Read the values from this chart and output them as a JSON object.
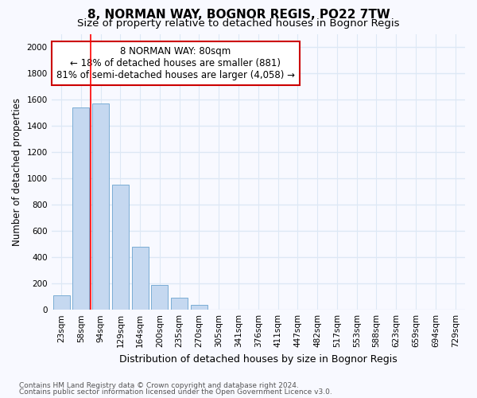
{
  "title1": "8, NORMAN WAY, BOGNOR REGIS, PO22 7TW",
  "title2": "Size of property relative to detached houses in Bognor Regis",
  "xlabel": "Distribution of detached houses by size in Bognor Regis",
  "ylabel": "Number of detached properties",
  "categories": [
    "23sqm",
    "58sqm",
    "94sqm",
    "129sqm",
    "164sqm",
    "200sqm",
    "235sqm",
    "270sqm",
    "305sqm",
    "341sqm",
    "376sqm",
    "411sqm",
    "447sqm",
    "482sqm",
    "517sqm",
    "553sqm",
    "588sqm",
    "623sqm",
    "659sqm",
    "694sqm",
    "729sqm"
  ],
  "values": [
    110,
    1540,
    1570,
    950,
    480,
    190,
    90,
    40,
    0,
    0,
    0,
    0,
    0,
    0,
    0,
    0,
    0,
    0,
    0,
    0,
    0
  ],
  "bar_color": "#c5d8f0",
  "bar_edge_color": "#7aadd4",
  "red_line_x": 1.5,
  "annotation_text": "8 NORMAN WAY: 80sqm\n← 18% of detached houses are smaller (881)\n81% of semi-detached houses are larger (4,058) →",
  "annotation_box_color": "#ffffff",
  "annotation_box_edge": "#cc0000",
  "ylim": [
    0,
    2100
  ],
  "yticks": [
    0,
    200,
    400,
    600,
    800,
    1000,
    1200,
    1400,
    1600,
    1800,
    2000
  ],
  "footer1": "Contains HM Land Registry data © Crown copyright and database right 2024.",
  "footer2": "Contains public sector information licensed under the Open Government Licence v3.0.",
  "background_color": "#f8f9ff",
  "plot_background": "#f8f9ff",
  "grid_color": "#dde8f5",
  "title1_fontsize": 11,
  "title2_fontsize": 9.5,
  "xlabel_fontsize": 9,
  "ylabel_fontsize": 8.5,
  "tick_fontsize": 7.5,
  "annotation_fontsize": 8.5,
  "footer_fontsize": 6.5
}
